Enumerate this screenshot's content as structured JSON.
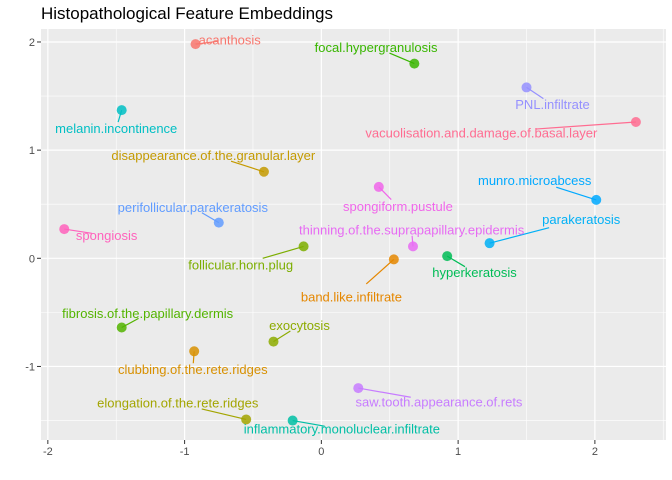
{
  "chart_data": {
    "type": "scatter",
    "title": "Histopathological Feature Embeddings",
    "xlabel": "",
    "ylabel": "",
    "xlim": [
      -2.05,
      2.52
    ],
    "ylim": [
      -1.68,
      2.12
    ],
    "x_ticks": [
      -2,
      -1,
      0,
      1,
      2
    ],
    "y_ticks": [
      -1,
      0,
      1,
      2
    ],
    "grid": true,
    "legend": "none",
    "panel_background": "#EBEBEB",
    "points": [
      {
        "label": "acanthosis",
        "x": -0.92,
        "y": 1.98,
        "color": "#F8766D",
        "lx": -0.67,
        "ly": 2.02
      },
      {
        "label": "focal.hypergranulosis",
        "x": 0.68,
        "y": 1.8,
        "color": "#39B600",
        "lx": 0.4,
        "ly": 1.95
      },
      {
        "label": "PNL.infiltrate",
        "x": 1.5,
        "y": 1.58,
        "color": "#9590FF",
        "lx": 1.69,
        "ly": 1.42
      },
      {
        "label": "melanin.incontinence",
        "x": -1.46,
        "y": 1.37,
        "color": "#00BFC4",
        "lx": -1.5,
        "ly": 1.2
      },
      {
        "label": "vacuolisation.and.damage.of.basal.layer",
        "x": 2.3,
        "y": 1.26,
        "color": "#FF6C91",
        "lx": 1.17,
        "ly": 1.16
      },
      {
        "label": "disappearance.of.the.granular.layer",
        "x": -0.42,
        "y": 0.8,
        "color": "#C49A00",
        "lx": -0.79,
        "ly": 0.95
      },
      {
        "label": "spongiform.pustule",
        "x": 0.42,
        "y": 0.66,
        "color": "#F066EA",
        "lx": 0.56,
        "ly": 0.48
      },
      {
        "label": "munro.microabcess",
        "x": 2.01,
        "y": 0.54,
        "color": "#00A9FF",
        "lx": 1.56,
        "ly": 0.72
      },
      {
        "label": "perifollicular.parakeratosis",
        "x": -0.75,
        "y": 0.33,
        "color": "#619CFF",
        "lx": -0.94,
        "ly": 0.47
      },
      {
        "label": "spongiosis",
        "x": -1.88,
        "y": 0.27,
        "color": "#FF62BC",
        "lx": -1.57,
        "ly": 0.21
      },
      {
        "label": "thinning.of.the.suprapapillary.epidermis",
        "x": 0.67,
        "y": 0.11,
        "color": "#E76BF3",
        "lx": 0.66,
        "ly": 0.26
      },
      {
        "label": "parakeratosis",
        "x": 1.23,
        "y": 0.14,
        "color": "#00B0F6",
        "lx": 1.9,
        "ly": 0.36
      },
      {
        "label": "follicular.horn.plug",
        "x": -0.13,
        "y": 0.11,
        "color": "#7CAE00",
        "lx": -0.59,
        "ly": -0.06
      },
      {
        "label": "hyperkeratosis",
        "x": 0.92,
        "y": 0.02,
        "color": "#00BC56",
        "lx": 1.12,
        "ly": -0.13
      },
      {
        "label": "band.like.infiltrate",
        "x": 0.53,
        "y": -0.01,
        "color": "#E58700",
        "lx": 0.22,
        "ly": -0.36
      },
      {
        "label": "fibrosis.of.the.papillary.dermis",
        "x": -1.46,
        "y": -0.64,
        "color": "#53B400",
        "lx": -1.27,
        "ly": -0.51
      },
      {
        "label": "exocytosis",
        "x": -0.35,
        "y": -0.77,
        "color": "#8DAB00",
        "lx": -0.16,
        "ly": -0.62
      },
      {
        "label": "clubbing.of.the.rete.ridges",
        "x": -0.93,
        "y": -0.86,
        "color": "#D89000",
        "lx": -0.94,
        "ly": -1.03
      },
      {
        "label": "saw.tooth.appearance.of.rets",
        "x": 0.27,
        "y": -1.2,
        "color": "#C77CFF",
        "lx": 0.86,
        "ly": -1.33
      },
      {
        "label": "elongation.of.the.rete.ridges",
        "x": -0.55,
        "y": -1.49,
        "color": "#A3A500",
        "lx": -1.05,
        "ly": -1.34
      },
      {
        "label": "inflammatory.monoluclear.infiltrate",
        "x": -0.21,
        "y": -1.5,
        "color": "#00BFA5",
        "lx": 0.15,
        "ly": -1.58
      }
    ]
  }
}
